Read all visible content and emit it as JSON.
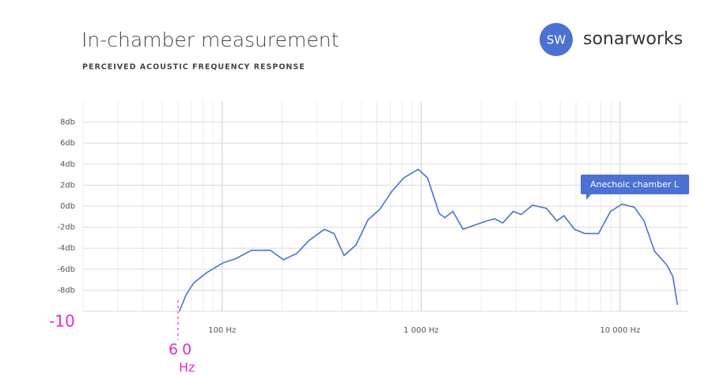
{
  "header": {
    "title": "In-chamber measurement",
    "subtitle": "PERCEIVED ACOUSTIC FREQUENCY RESPONSE",
    "logo_badge": "SW",
    "logo_text": "sonarworks"
  },
  "chart_data": {
    "type": "line",
    "xscale": "log",
    "grid": true,
    "xlim": [
      20,
      22000
    ],
    "ylim": [
      -10,
      10
    ],
    "xticks": [
      {
        "value": 100,
        "label": "100 Hz"
      },
      {
        "value": 1000,
        "label": "1 000 Hz"
      },
      {
        "value": 10000,
        "label": "10 000 Hz"
      }
    ],
    "minor_xticks": [
      20,
      30,
      40,
      50,
      60,
      70,
      80,
      90,
      200,
      300,
      400,
      500,
      600,
      700,
      800,
      900,
      2000,
      3000,
      4000,
      5000,
      6000,
      7000,
      8000,
      9000,
      20000
    ],
    "yticks": [
      {
        "value": -8,
        "label": "-8db"
      },
      {
        "value": -6,
        "label": "-6db"
      },
      {
        "value": -4,
        "label": "-4db"
      },
      {
        "value": -2,
        "label": "-2db"
      },
      {
        "value": 0,
        "label": "0db"
      },
      {
        "value": 2,
        "label": "2db"
      },
      {
        "value": 4,
        "label": "4db"
      },
      {
        "value": 6,
        "label": "6db"
      },
      {
        "value": 8,
        "label": "8db"
      }
    ],
    "x": [
      61,
      66,
      72,
      84,
      101,
      117,
      140,
      175,
      203,
      237,
      272,
      326,
      365,
      410,
      470,
      541,
      620,
      711,
      818,
      967,
      1077,
      1233,
      1316,
      1443,
      1624,
      1862,
      2140,
      2345,
      2572,
      2904,
      3183,
      3625,
      4260,
      4804,
      5219,
      5893,
      6641,
      7782,
      8946,
      10230,
      11780,
      13180,
      14900,
      17170,
      18400,
      19400
    ],
    "series": [
      {
        "name": "Anechoic chamber L",
        "color": "#4a72d4",
        "values": [
          -10,
          -8.4,
          -7.3,
          -6.3,
          -5.4,
          -5.0,
          -4.2,
          -4.2,
          -5.1,
          -4.5,
          -3.3,
          -2.2,
          -2.6,
          -4.7,
          -3.7,
          -1.3,
          -0.3,
          1.4,
          2.7,
          3.5,
          2.7,
          -0.7,
          -1.1,
          -0.5,
          -2.2,
          -1.8,
          -1.4,
          -1.2,
          -1.6,
          -0.5,
          -0.8,
          0.1,
          -0.2,
          -1.4,
          -0.9,
          -2.2,
          -2.6,
          -2.6,
          -0.5,
          0.2,
          -0.1,
          -1.4,
          -4.3,
          -5.6,
          -6.7,
          -9.4
        ]
      }
    ],
    "annotations": [
      {
        "text": "-10"
      },
      {
        "text": "60"
      },
      {
        "text": "Hz"
      }
    ]
  }
}
